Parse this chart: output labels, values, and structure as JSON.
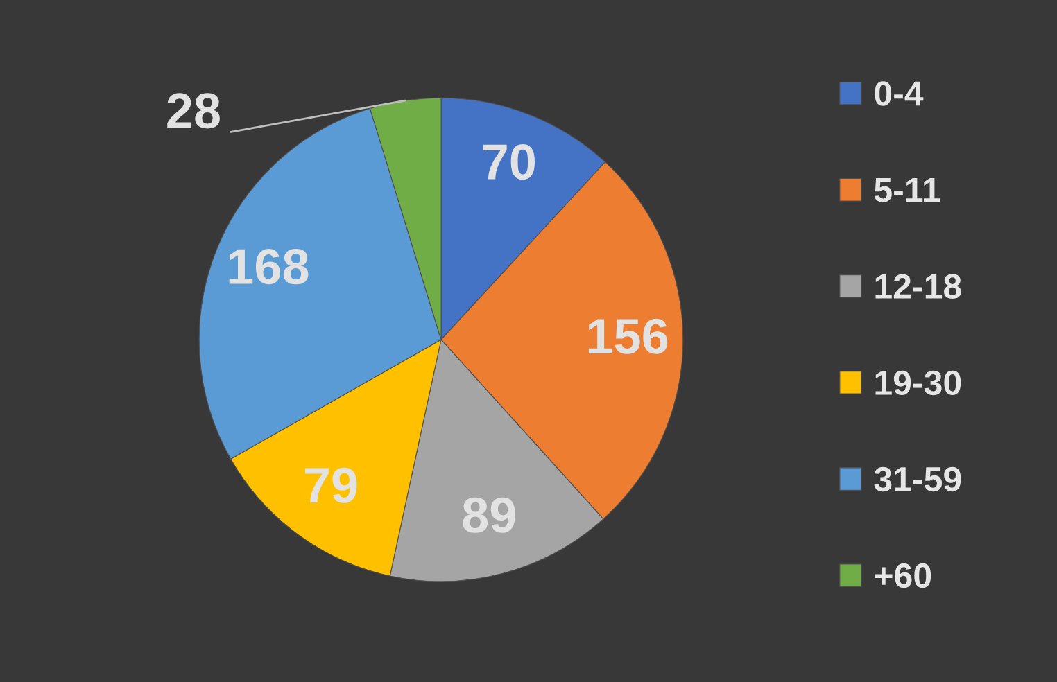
{
  "chart_data": {
    "type": "pie",
    "categories": [
      "0-4",
      "5-11",
      "12-18",
      "19-30",
      "31-59",
      "+60"
    ],
    "values": [
      70,
      156,
      89,
      79,
      168,
      28
    ],
    "colors": [
      "#4472c4",
      "#ed7d31",
      "#a5a5a5",
      "#ffc000",
      "#5b9bd5",
      "#70ad47"
    ],
    "data_labels": true,
    "legend": "right"
  }
}
